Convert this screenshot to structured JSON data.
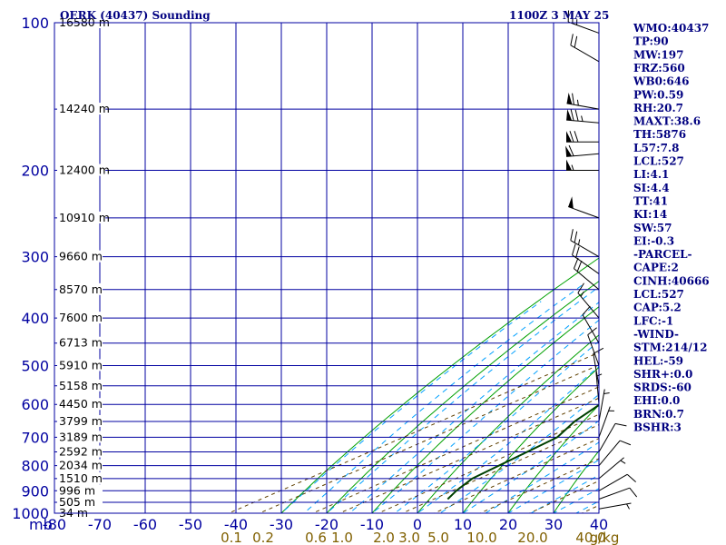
{
  "header": {
    "station": "OERK (40437) Sounding",
    "time": "1100Z  3 MAY 25"
  },
  "chart_data": {
    "type": "skew-t log-p sounding",
    "pressure_label": "mb",
    "pressure_ticks": [
      100,
      200,
      300,
      400,
      500,
      600,
      700,
      800,
      900,
      1000
    ],
    "temperature_ticks": [
      -80,
      -70,
      -60,
      -50,
      -40,
      -30,
      -20,
      -10,
      0,
      10,
      20,
      30,
      40
    ],
    "ylim": [
      100,
      1000
    ],
    "xlim": [
      -80,
      40
    ],
    "mixing_ratio_labels": [
      "0.1",
      "0.2",
      "0.6",
      "1.0",
      "2.0",
      "3.0",
      "5.0",
      "10.0",
      "20.0",
      "40.0",
      "g/kg"
    ],
    "height_labels": [
      {
        "p": 100,
        "text": "16580 m"
      },
      {
        "p": 150,
        "text": "14240 m"
      },
      {
        "p": 200,
        "text": "12400 m"
      },
      {
        "p": 250,
        "text": "10910 m"
      },
      {
        "p": 300,
        "text": "9660 m"
      },
      {
        "p": 350,
        "text": "8570 m"
      },
      {
        "p": 400,
        "text": "7600 m"
      },
      {
        "p": 450,
        "text": "6713 m"
      },
      {
        "p": 500,
        "text": "5910 m"
      },
      {
        "p": 550,
        "text": "5158 m"
      },
      {
        "p": 600,
        "text": "4450 m"
      },
      {
        "p": 650,
        "text": "3799 m"
      },
      {
        "p": 700,
        "text": "3189 m"
      },
      {
        "p": 750,
        "text": "2592 m"
      },
      {
        "p": 800,
        "text": "2034 m"
      },
      {
        "p": 850,
        "text": "1510 m"
      },
      {
        "p": 900,
        "text": "996 m"
      },
      {
        "p": 950,
        "text": "505 m"
      },
      {
        "p": 1000,
        "text": "34 m"
      }
    ],
    "temperature_profile": [
      {
        "p": 936,
        "t": 33.9
      },
      {
        "p": 900,
        "t": 29.2
      },
      {
        "p": 850,
        "t": 23.0
      },
      {
        "p": 800,
        "t": 17.6
      },
      {
        "p": 700,
        "t": 9.0
      },
      {
        "p": 650,
        "t": 5.1
      },
      {
        "p": 600,
        "t": 0.3
      },
      {
        "p": 550,
        "t": -4.2
      },
      {
        "p": 500,
        "t": -9.6
      },
      {
        "p": 450,
        "t": -15.6
      },
      {
        "p": 400,
        "t": -22.1
      },
      {
        "p": 300,
        "t": -37.1
      },
      {
        "p": 250,
        "t": -46.5
      },
      {
        "p": 240,
        "t": -44.5
      },
      {
        "p": 200,
        "t": -45.9
      },
      {
        "p": 150,
        "t": -51.3
      },
      {
        "p": 120,
        "t": -58.8
      },
      {
        "p": 100,
        "t": -61.7
      }
    ],
    "dewpoint_profile": [
      {
        "p": 936,
        "t": -1.1
      },
      {
        "p": 900,
        "t": -3.8
      },
      {
        "p": 850,
        "t": -7.0
      },
      {
        "p": 700,
        "t": -11.0
      },
      {
        "p": 650,
        "t": -15.9
      },
      {
        "p": 600,
        "t": -19.7
      },
      {
        "p": 550,
        "t": -22.2
      },
      {
        "p": 500,
        "t": -26.6
      },
      {
        "p": 450,
        "t": -30.6
      },
      {
        "p": 420,
        "t": -33.1
      },
      {
        "p": 400,
        "t": -30.1
      },
      {
        "p": 380,
        "t": -28.1
      },
      {
        "p": 350,
        "t": -31.1
      },
      {
        "p": 300,
        "t": -42.1
      },
      {
        "p": 270,
        "t": -48.1
      },
      {
        "p": 260,
        "t": -58.1
      },
      {
        "p": 250,
        "t": -68.1
      },
      {
        "p": 230,
        "t": -77.1
      },
      {
        "p": 200,
        "t": -80.1
      },
      {
        "p": 180,
        "t": -84.1
      }
    ],
    "parcel_profile": [
      {
        "p": 936,
        "t": 33.9
      },
      {
        "p": 850,
        "t": 23.0
      },
      {
        "p": 700,
        "t": 7.6
      },
      {
        "p": 600,
        "t": -1.5
      },
      {
        "p": 500,
        "t": -11.6
      },
      {
        "p": 400,
        "t": -24.5
      },
      {
        "p": 300,
        "t": -43.5
      },
      {
        "p": 250,
        "t": -55.5
      },
      {
        "p": 200,
        "t": -69.5
      },
      {
        "p": 150,
        "t": -88.0
      }
    ],
    "wind_barbs": [
      {
        "p": 105,
        "dir": 290,
        "spd": 25
      },
      {
        "p": 120,
        "dir": 300,
        "spd": 20
      },
      {
        "p": 150,
        "dir": 280,
        "spd": 65
      },
      {
        "p": 160,
        "dir": 275,
        "spd": 75
      },
      {
        "p": 175,
        "dir": 270,
        "spd": 70
      },
      {
        "p": 185,
        "dir": 265,
        "spd": 60
      },
      {
        "p": 200,
        "dir": 270,
        "spd": 55
      },
      {
        "p": 250,
        "dir": 290,
        "spd": 50
      },
      {
        "p": 300,
        "dir": 300,
        "spd": 25
      },
      {
        "p": 325,
        "dir": 305,
        "spd": 20
      },
      {
        "p": 350,
        "dir": 310,
        "spd": 20
      },
      {
        "p": 400,
        "dir": 320,
        "spd": 15
      },
      {
        "p": 450,
        "dir": 330,
        "spd": 10
      },
      {
        "p": 500,
        "dir": 340,
        "spd": 10
      },
      {
        "p": 550,
        "dir": 350,
        "spd": 10
      },
      {
        "p": 600,
        "dir": 355,
        "spd": 5
      },
      {
        "p": 650,
        "dir": 10,
        "spd": 5
      },
      {
        "p": 700,
        "dir": 20,
        "spd": 5
      },
      {
        "p": 750,
        "dir": 30,
        "spd": 10
      },
      {
        "p": 800,
        "dir": 40,
        "spd": 10
      },
      {
        "p": 850,
        "dir": 50,
        "spd": 5
      },
      {
        "p": 900,
        "dir": 60,
        "spd": 10
      },
      {
        "p": 936,
        "dir": 70,
        "spd": 10
      },
      {
        "p": 980,
        "dir": 80,
        "spd": 5
      }
    ],
    "colors": {
      "temperature": "#a00000",
      "dewpoint": "#004000",
      "parcel": "#0000c0",
      "isobar_isotherm": "#0000a0",
      "dry_adiabat": "#00a000",
      "moist_adiabat": "#00a0ff",
      "mixing_ratio": "#604000"
    }
  },
  "indices": [
    "WMO:40437",
    "TP:90",
    "MW:197",
    "FRZ:560",
    "WB0:646",
    "PW:0.59",
    "RH:20.7",
    "MAXT:38.6",
    "TH:5876",
    "L57:7.8",
    "LCL:527",
    "LI:4.1",
    "SI:4.4",
    "TT:41",
    "KI:14",
    "SW:57",
    "EI:-0.3",
    "-PARCEL-",
    "CAPE:2",
    "CINH:40666",
    "LCL:527",
    "CAP:5.2",
    "LFC:-1",
    "-WIND-",
    "STM:214/12",
    "HEL:-59",
    "SHR+:0.0",
    "SRDS:-60",
    "EHI:0.0",
    "BRN:0.7",
    "BSHR:3"
  ]
}
